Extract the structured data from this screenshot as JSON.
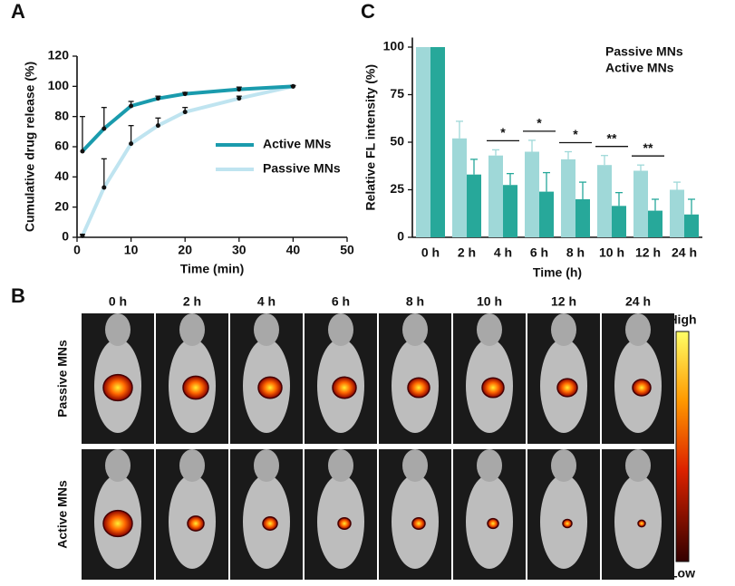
{
  "panel_labels": [
    "A",
    "B",
    "C"
  ],
  "chart_data": [
    {
      "type": "line",
      "x_label": "Time (min)",
      "y_label": "Cumulative drug release (%)",
      "x": [
        1,
        5,
        10,
        15,
        20,
        30,
        40
      ],
      "series": [
        {
          "name": "Active MNs",
          "color": "#1a9bad",
          "values": [
            57,
            72,
            87,
            92,
            95,
            98,
            100
          ],
          "errors": [
            23,
            14,
            3,
            1.5,
            1,
            1.5,
            0.5
          ]
        },
        {
          "name": "Passive MNs",
          "color": "#bfe4f0",
          "values": [
            1,
            33,
            62,
            74,
            83,
            92,
            100
          ],
          "errors": [
            1,
            19,
            12,
            5,
            3,
            1.5,
            0.5
          ]
        }
      ],
      "xlim": [
        0,
        50
      ],
      "xticks": [
        0,
        10,
        20,
        30,
        40,
        50
      ],
      "ylim": [
        0,
        120
      ],
      "yticks": [
        0,
        20,
        40,
        60,
        80,
        100,
        120
      ]
    },
    {
      "type": "bar",
      "x_label": "Time (h)",
      "y_label": "Relative FL intensity (%)",
      "categories": [
        "0 h",
        "2 h",
        "4 h",
        "6 h",
        "8 h",
        "10 h",
        "12 h",
        "24 h"
      ],
      "series": [
        {
          "name": "Passive MNs",
          "color": "#9fd8d8",
          "values": [
            100,
            52,
            43,
            45,
            41,
            38,
            35,
            25
          ],
          "errors": [
            0,
            9,
            3,
            6,
            4,
            5,
            3,
            4
          ]
        },
        {
          "name": "Active MNs",
          "color": "#27a89a",
          "values": [
            100,
            33,
            27.5,
            24,
            20,
            16.5,
            14,
            12
          ],
          "errors": [
            0,
            8,
            6,
            10,
            9,
            7,
            6,
            8
          ]
        }
      ],
      "annotations": [
        {
          "category": "4 h",
          "label": "*"
        },
        {
          "category": "6 h",
          "label": "*"
        },
        {
          "category": "8 h",
          "label": "*"
        },
        {
          "category": "10 h",
          "label": "**"
        },
        {
          "category": "12 h",
          "label": "**"
        }
      ],
      "ylim": [
        0,
        105
      ],
      "yticks": [
        0,
        25,
        50,
        75,
        100
      ]
    }
  ],
  "imaging": {
    "times": [
      "0 h",
      "2 h",
      "4 h",
      "6 h",
      "8 h",
      "10 h",
      "12 h",
      "24 h"
    ],
    "rows": [
      "Passive MNs",
      "Active MNs"
    ],
    "scale_high": "High",
    "scale_low": "Low"
  }
}
